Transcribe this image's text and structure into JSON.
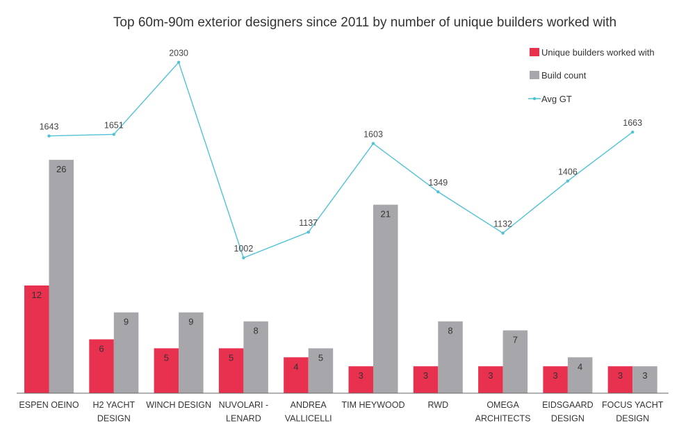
{
  "chart_data": {
    "type": "bar",
    "title": "Top 60m-90m exterior designers since 2011 by number of unique builders worked with",
    "categories": [
      [
        "ESPEN OEINO"
      ],
      [
        "H2 YACHT",
        "DESIGN"
      ],
      [
        "WINCH DESIGN"
      ],
      [
        "NUVOLARI -",
        "LENARD"
      ],
      [
        "ANDREA",
        "VALLICELLI"
      ],
      [
        "TIM HEYWOOD"
      ],
      [
        "RWD"
      ],
      [
        "OMEGA",
        "ARCHITECTS"
      ],
      [
        "EIDSGAARD",
        "DESIGN"
      ],
      [
        "FOCUS YACHT",
        "DESIGN"
      ]
    ],
    "series": [
      {
        "name": "Unique builders worked with",
        "type": "bar",
        "color": "#e8304f",
        "values": [
          12,
          6,
          5,
          5,
          4,
          3,
          3,
          3,
          3,
          3
        ]
      },
      {
        "name": "Build count",
        "type": "bar",
        "color": "#a7a7ab",
        "values": [
          26,
          9,
          9,
          8,
          5,
          21,
          8,
          7,
          4,
          3
        ]
      },
      {
        "name": "Avg GT",
        "type": "line",
        "color": "#4fc3d4",
        "values": [
          1643,
          1651,
          2030,
          1002,
          1137,
          1603,
          1349,
          1132,
          1406,
          1663
        ]
      }
    ],
    "legend_position": "top-right",
    "grid": false
  }
}
